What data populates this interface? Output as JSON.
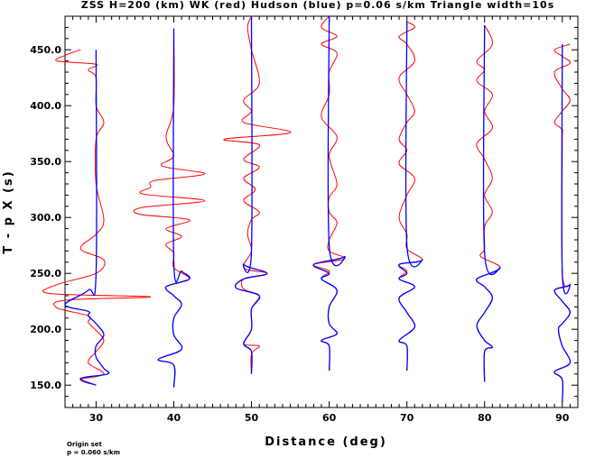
{
  "chart_data": {
    "type": "line",
    "title": "ZSS H=200 (km) WK (red) Hudson (blue) p=0.06 s/km Triangle width=10s",
    "xlabel": "Distance (deg)",
    "ylabel": "T - p X (s)",
    "xlim": [
      26,
      92
    ],
    "ylim": [
      130,
      480
    ],
    "xticks": [
      "30",
      "40",
      "50",
      "60",
      "70",
      "80",
      "90"
    ],
    "yticks": [
      "150.0",
      "200.0",
      "250.0",
      "300.0",
      "350.0",
      "400.0",
      "450.0"
    ],
    "xtick_values": [
      30,
      40,
      50,
      60,
      70,
      80,
      90
    ],
    "ytick_values": [
      150,
      200,
      250,
      300,
      350,
      400,
      450
    ],
    "grid": false,
    "series": [
      {
        "name": "WK (red)",
        "color": "#ff0000"
      },
      {
        "name": "Hudson (blue)",
        "color": "#0000ff"
      }
    ],
    "traces": [
      {
        "distance": 30,
        "tmin": 150,
        "tmax": 450,
        "blue_end": 450,
        "red_wiggles": [
          [
            450,
            -2
          ],
          [
            445,
            -4
          ],
          [
            440,
            -5
          ],
          [
            437,
            0
          ],
          [
            432,
            -1
          ],
          [
            425,
            0
          ],
          [
            400,
            0
          ],
          [
            385,
            1
          ],
          [
            370,
            0
          ],
          [
            330,
            0
          ],
          [
            298,
            1
          ],
          [
            285,
            0
          ],
          [
            272,
            -2
          ],
          [
            262,
            1
          ],
          [
            250,
            0
          ],
          [
            240,
            -5
          ],
          [
            232,
            -6
          ],
          [
            229,
            7
          ],
          [
            226,
            -4
          ],
          [
            219,
            -5
          ],
          [
            212,
            -1
          ],
          [
            206,
            -1
          ],
          [
            199,
            0
          ],
          [
            190,
            1
          ],
          [
            180,
            0
          ],
          [
            170,
            -1
          ],
          [
            160,
            1
          ],
          [
            155,
            -2
          ],
          [
            150,
            0
          ]
        ],
        "blue_wiggles": [
          [
            450,
            0
          ],
          [
            250,
            0
          ],
          [
            235,
            -1
          ],
          [
            222,
            -4
          ],
          [
            216,
            -1
          ],
          [
            212,
            -1
          ],
          [
            205,
            0
          ],
          [
            195,
            1
          ],
          [
            185,
            0
          ],
          [
            175,
            0
          ],
          [
            165,
            1
          ],
          [
            160,
            1.5
          ],
          [
            156,
            -2
          ],
          [
            150,
            0
          ]
        ]
      },
      {
        "distance": 40,
        "tmin": 148,
        "tmax": 469,
        "blue_end": 469,
        "red_wiggles": [
          [
            469,
            0
          ],
          [
            400,
            0
          ],
          [
            372,
            -1
          ],
          [
            355,
            0
          ],
          [
            346,
            -1.5
          ],
          [
            339,
            4
          ],
          [
            333,
            -2.5
          ],
          [
            327,
            -3
          ],
          [
            321,
            -4
          ],
          [
            315,
            4
          ],
          [
            309,
            -4
          ],
          [
            303,
            -4.5
          ],
          [
            298,
            2
          ],
          [
            290,
            -1
          ],
          [
            283,
            1
          ],
          [
            276,
            -1
          ],
          [
            268,
            0
          ],
          [
            255,
            0
          ],
          [
            245,
            2
          ],
          [
            238,
            -1
          ],
          [
            230,
            0
          ],
          [
            222,
            1
          ],
          [
            210,
            0
          ],
          [
            195,
            0
          ],
          [
            182,
            1
          ],
          [
            173,
            -2
          ],
          [
            168,
            0
          ],
          [
            148,
            0
          ]
        ],
        "blue_wiggles": [
          [
            469,
            0
          ],
          [
            260,
            0
          ],
          [
            252,
            1
          ],
          [
            245,
            2
          ],
          [
            238,
            -1
          ],
          [
            230,
            0
          ],
          [
            222,
            1
          ],
          [
            210,
            0
          ],
          [
            195,
            0
          ],
          [
            182,
            1
          ],
          [
            173,
            -2
          ],
          [
            168,
            0
          ],
          [
            148,
            0
          ]
        ]
      },
      {
        "distance": 50,
        "tmin": 160,
        "tmax": 480,
        "blue_end": 480,
        "red_wiggles": [
          [
            480,
            0
          ],
          [
            470,
            -0.5
          ],
          [
            450,
            0
          ],
          [
            420,
            1
          ],
          [
            405,
            -1
          ],
          [
            395,
            0
          ],
          [
            385,
            -1
          ],
          [
            376,
            5
          ],
          [
            370,
            -3.5
          ],
          [
            365,
            1
          ],
          [
            352,
            -1
          ],
          [
            345,
            1
          ],
          [
            335,
            -1
          ],
          [
            325,
            0.5
          ],
          [
            315,
            -1
          ],
          [
            305,
            1
          ],
          [
            298,
            0
          ],
          [
            285,
            -0.5
          ],
          [
            270,
            0
          ],
          [
            255,
            -1
          ],
          [
            250,
            2
          ],
          [
            245,
            -1
          ],
          [
            236,
            -1
          ],
          [
            230,
            1
          ],
          [
            218,
            0
          ],
          [
            200,
            0
          ],
          [
            187,
            -1
          ],
          [
            185,
            1
          ],
          [
            178,
            0
          ],
          [
            160,
            0
          ]
        ],
        "blue_wiggles": [
          [
            480,
            0
          ],
          [
            270,
            0
          ],
          [
            258,
            -1
          ],
          [
            250,
            2
          ],
          [
            245,
            -1
          ],
          [
            237,
            -2
          ],
          [
            230,
            1
          ],
          [
            218,
            0
          ],
          [
            200,
            0
          ],
          [
            187,
            -1
          ],
          [
            180,
            0
          ],
          [
            160,
            0
          ]
        ]
      },
      {
        "distance": 60,
        "tmin": 163,
        "tmax": 480,
        "blue_end": 480,
        "red_wiggles": [
          [
            480,
            0
          ],
          [
            470,
            -1
          ],
          [
            462,
            1
          ],
          [
            455,
            -1
          ],
          [
            447,
            1
          ],
          [
            430,
            0
          ],
          [
            410,
            0
          ],
          [
            390,
            -1
          ],
          [
            372,
            1
          ],
          [
            355,
            0
          ],
          [
            330,
            1
          ],
          [
            318,
            0
          ],
          [
            305,
            0
          ],
          [
            295,
            1
          ],
          [
            280,
            0
          ],
          [
            270,
            0
          ],
          [
            263,
            2
          ],
          [
            258,
            -2
          ],
          [
            252,
            0
          ],
          [
            245,
            -1
          ],
          [
            235,
            1
          ],
          [
            220,
            0
          ],
          [
            205,
            0
          ],
          [
            196,
            1
          ],
          [
            190,
            -1
          ],
          [
            185,
            0
          ],
          [
            163,
            0
          ]
        ],
        "blue_wiggles": [
          [
            480,
            0
          ],
          [
            275,
            0
          ],
          [
            265,
            2
          ],
          [
            258,
            -2
          ],
          [
            250,
            0
          ],
          [
            245,
            -1
          ],
          [
            235,
            1
          ],
          [
            220,
            0
          ],
          [
            205,
            0
          ],
          [
            196,
            1
          ],
          [
            190,
            -1
          ],
          [
            185,
            0
          ],
          [
            163,
            0
          ]
        ]
      },
      {
        "distance": 70,
        "tmin": 163,
        "tmax": 475,
        "blue_end": 475,
        "red_wiggles": [
          [
            475,
            0
          ],
          [
            470,
            1
          ],
          [
            462,
            -1
          ],
          [
            455,
            0
          ],
          [
            440,
            1
          ],
          [
            425,
            -1
          ],
          [
            410,
            0
          ],
          [
            395,
            1
          ],
          [
            385,
            0
          ],
          [
            370,
            -1
          ],
          [
            360,
            0
          ],
          [
            348,
            -1
          ],
          [
            335,
            1
          ],
          [
            320,
            0
          ],
          [
            300,
            -1
          ],
          [
            285,
            0
          ],
          [
            272,
            0
          ],
          [
            262,
            2
          ],
          [
            258,
            -1
          ],
          [
            252,
            0
          ],
          [
            245,
            -1
          ],
          [
            238,
            1
          ],
          [
            228,
            -1
          ],
          [
            215,
            0
          ],
          [
            202,
            1
          ],
          [
            190,
            -1
          ],
          [
            185,
            0
          ],
          [
            163,
            0
          ]
        ],
        "blue_wiggles": [
          [
            475,
            0
          ],
          [
            275,
            0
          ],
          [
            262,
            2
          ],
          [
            258,
            -1
          ],
          [
            250,
            0
          ],
          [
            245,
            -1
          ],
          [
            238,
            1
          ],
          [
            228,
            -1
          ],
          [
            215,
            0
          ],
          [
            202,
            1
          ],
          [
            190,
            -1
          ],
          [
            185,
            0
          ],
          [
            163,
            0
          ]
        ]
      },
      {
        "distance": 80,
        "tmin": 153,
        "tmax": 472,
        "blue_end": 472,
        "red_wiggles": [
          [
            472,
            0
          ],
          [
            455,
            1
          ],
          [
            440,
            -1
          ],
          [
            432,
            0
          ],
          [
            422,
            -1
          ],
          [
            410,
            1
          ],
          [
            395,
            0
          ],
          [
            380,
            1
          ],
          [
            366,
            -1
          ],
          [
            352,
            0
          ],
          [
            335,
            1
          ],
          [
            320,
            0
          ],
          [
            305,
            1
          ],
          [
            292,
            0
          ],
          [
            272,
            0
          ],
          [
            265,
            -0.5
          ],
          [
            255,
            2
          ],
          [
            245,
            -1
          ],
          [
            238,
            0
          ],
          [
            228,
            1
          ],
          [
            215,
            0
          ],
          [
            203,
            -1
          ],
          [
            190,
            0
          ],
          [
            184,
            1
          ],
          [
            180,
            0
          ],
          [
            153,
            0
          ]
        ],
        "blue_wiggles": [
          [
            472,
            0
          ],
          [
            268,
            0
          ],
          [
            255,
            2
          ],
          [
            245,
            -1
          ],
          [
            238,
            0
          ],
          [
            228,
            1
          ],
          [
            215,
            0
          ],
          [
            203,
            -1
          ],
          [
            190,
            0
          ],
          [
            184,
            1
          ],
          [
            180,
            0
          ],
          [
            153,
            0
          ]
        ]
      },
      {
        "distance": 90,
        "tmin": 135,
        "tmax": 455,
        "blue_end": 455,
        "red_wiggles": [
          [
            455,
            1
          ],
          [
            450,
            -1
          ],
          [
            444,
            0
          ],
          [
            438,
            1
          ],
          [
            430,
            -1
          ],
          [
            415,
            0
          ],
          [
            405,
            1
          ],
          [
            395,
            0
          ],
          [
            385,
            -1
          ],
          [
            378,
            0
          ],
          [
            365,
            0
          ],
          [
            250,
            0
          ],
          [
            240,
            1
          ],
          [
            235,
            -1
          ],
          [
            225,
            0
          ],
          [
            215,
            1
          ],
          [
            205,
            0
          ],
          [
            200,
            -0.5
          ],
          [
            185,
            0
          ],
          [
            170,
            1
          ],
          [
            162,
            -1
          ],
          [
            155,
            0
          ],
          [
            135,
            0
          ]
        ],
        "blue_wiggles": [
          [
            455,
            0
          ],
          [
            250,
            0
          ],
          [
            240,
            1
          ],
          [
            235,
            -1
          ],
          [
            225,
            0
          ],
          [
            215,
            1
          ],
          [
            205,
            0
          ],
          [
            200,
            -0.5
          ],
          [
            185,
            0
          ],
          [
            170,
            1
          ],
          [
            162,
            -1
          ],
          [
            155,
            0
          ],
          [
            135,
            0
          ]
        ]
      }
    ]
  },
  "footnote": {
    "line1": "Origin set",
    "line2": "p = 0.060 s/km"
  }
}
